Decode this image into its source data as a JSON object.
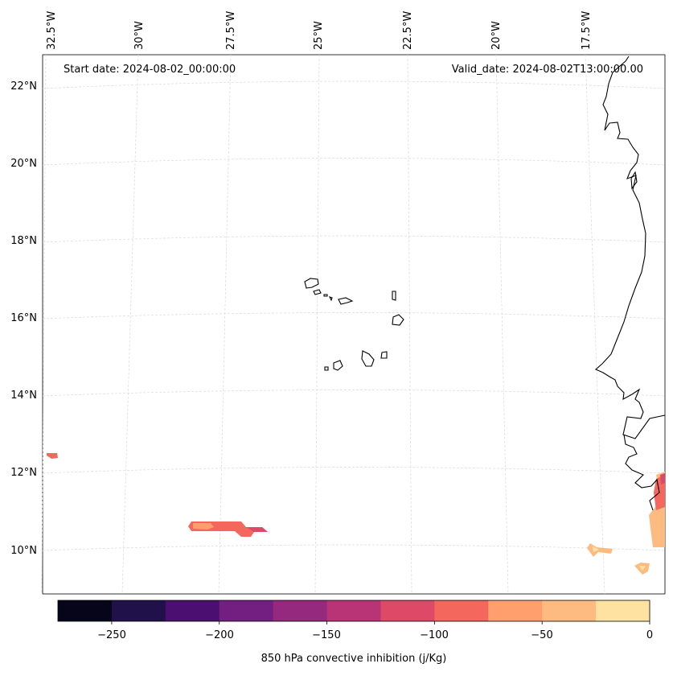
{
  "map": {
    "start_date_label": "Start date: 2024-08-02_00:00:00",
    "valid_date_label": "Valid_date: 2024-08-02T13:00:00.00",
    "lon_labels": [
      "32.5°W",
      "30°W",
      "27.5°W",
      "25°W",
      "22.5°W",
      "20°W",
      "17.5°W"
    ],
    "lat_labels": [
      "22°N",
      "20°N",
      "18°N",
      "16°N",
      "14°N",
      "12°N",
      "10°N"
    ],
    "coastline_color": "#000000",
    "gridline_color": "#d9d9d9"
  },
  "colorbar": {
    "label": "850 hPa convective inhibition (j/Kg)",
    "tick_labels": [
      "−250",
      "−200",
      "−150",
      "−100",
      "−50",
      "0"
    ],
    "bins": [
      {
        "from": -275,
        "to": -250,
        "color": "#06051a"
      },
      {
        "from": -250,
        "to": -225,
        "color": "#20114b"
      },
      {
        "from": -225,
        "to": -200,
        "color": "#4b0f72"
      },
      {
        "from": -200,
        "to": -175,
        "color": "#721f81"
      },
      {
        "from": -175,
        "to": -150,
        "color": "#94297e"
      },
      {
        "from": -150,
        "to": -125,
        "color": "#b93476"
      },
      {
        "from": -125,
        "to": -100,
        "color": "#de4968"
      },
      {
        "from": -100,
        "to": -75,
        "color": "#f4675c"
      },
      {
        "from": -75,
        "to": -50,
        "color": "#fe9f6d"
      },
      {
        "from": -50,
        "to": -25,
        "color": "#febb81"
      },
      {
        "from": -25,
        "to": 0,
        "color": "#fde2a2"
      }
    ]
  }
}
